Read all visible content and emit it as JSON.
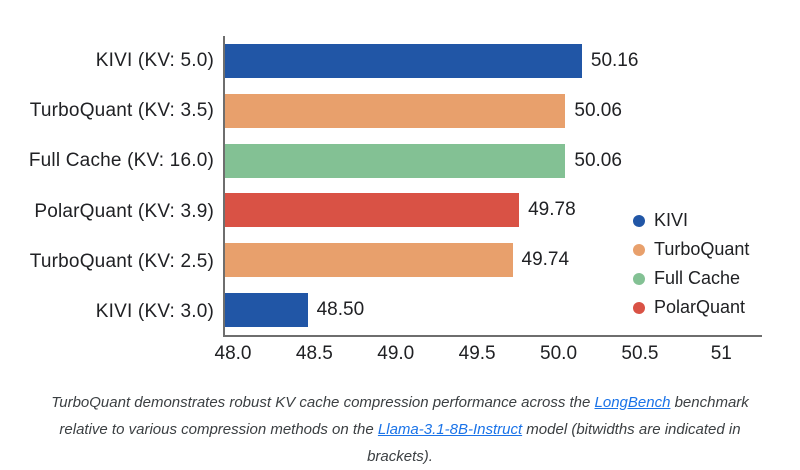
{
  "chart_data": {
    "type": "bar",
    "orientation": "horizontal",
    "title": "",
    "xlabel": "",
    "ylabel": "",
    "grid": false,
    "categories": [
      "KIVI (KV: 5.0)",
      "TurboQuant (KV: 3.5)",
      "Full Cache (KV: 16.0)",
      "PolarQuant (KV: 3.9)",
      "TurboQuant (KV: 2.5)",
      "KIVI (KV: 3.0)"
    ],
    "values": [
      50.16,
      50.06,
      50.06,
      49.78,
      49.74,
      48.5
    ],
    "value_labels": [
      "50.16",
      "50.06",
      "50.06",
      "49.78",
      "49.74",
      "48.50"
    ],
    "bar_series": [
      "KIVI",
      "TurboQuant",
      "Full Cache",
      "PolarQuant",
      "TurboQuant",
      "KIVI"
    ],
    "bar_colors": [
      "#2156a6",
      "#e8a06c",
      "#83c194",
      "#d95245",
      "#e8a06c",
      "#2156a6"
    ],
    "xlim": [
      48,
      51.25
    ],
    "x_ticks": [
      {
        "label": "48.0",
        "value": 48.0
      },
      {
        "label": "48.5",
        "value": 48.5
      },
      {
        "label": "49.0",
        "value": 49.0
      },
      {
        "label": "49.5",
        "value": 49.5
      },
      {
        "label": "50.0",
        "value": 50.0
      },
      {
        "label": "50.5",
        "value": 50.5
      },
      {
        "label": "51",
        "value": 51.0
      }
    ],
    "legend_position": "right-lower",
    "legend": [
      {
        "label": "KIVI",
        "color": "#2156a6"
      },
      {
        "label": "TurboQuant",
        "color": "#e8a06c"
      },
      {
        "label": "Full Cache",
        "color": "#83c194"
      },
      {
        "label": "PolarQuant",
        "color": "#d95245"
      }
    ],
    "axis_color": "#6e6e6e"
  },
  "caption": {
    "segments": {
      "s0": "TurboQuant demonstrates robust KV cache compression performance across the ",
      "link1": "LongBench",
      "s1": " benchmark relative to various compression methods on the ",
      "link2": "Llama-3.1-8B-Instruct",
      "s2": " model (bitwidths are indicated in brackets)."
    },
    "text_color": "#3c4043",
    "link_color": "#1a73e8"
  }
}
